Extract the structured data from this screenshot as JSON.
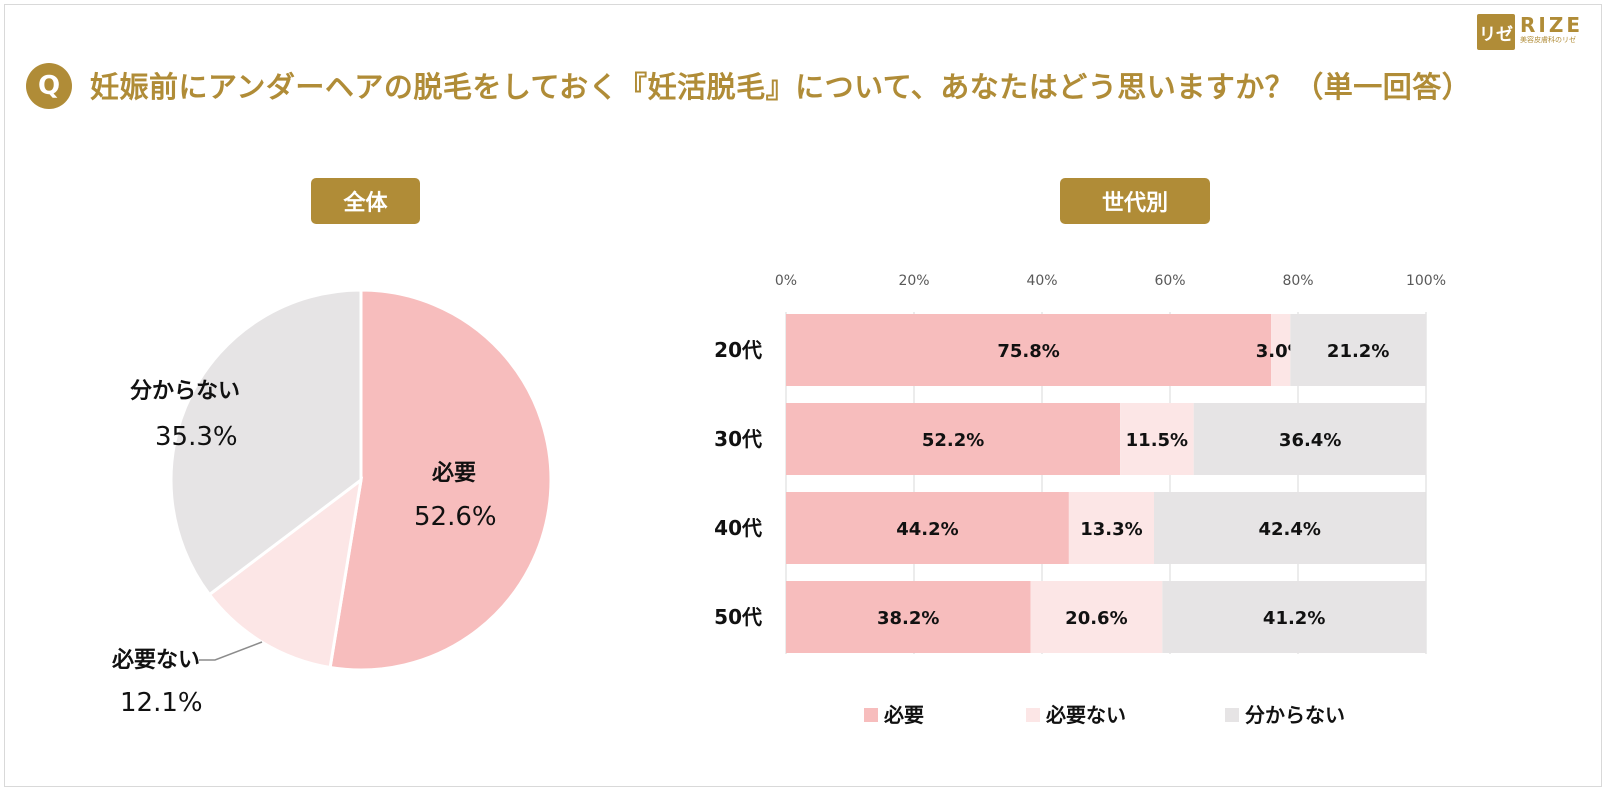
{
  "header": {
    "q_badge": "Q",
    "title": "妊娠前にアンダーヘアの脱毛をしておく『妊活脱毛』について、あなたはどう思いますか？（単一回答）"
  },
  "logo": {
    "mark": "リゼ",
    "word": "RIZE",
    "sub": "美容皮膚科のリゼ"
  },
  "colors": {
    "accent": "#b08c37",
    "needed": "#f7bdbd",
    "not_needed": "#fce6e6",
    "unknown": "#e6e4e5"
  },
  "chart_data": [
    {
      "type": "pie",
      "title": "全体",
      "slices": [
        {
          "label": "必要",
          "value": 52.6,
          "display": "52.6%"
        },
        {
          "label": "必要ない",
          "value": 12.1,
          "display": "12.1%"
        },
        {
          "label": "分からない",
          "value": 35.3,
          "display": "35.3%"
        }
      ]
    },
    {
      "type": "bar",
      "orientation": "horizontal",
      "stacked": true,
      "title": "世代別",
      "categories": [
        "20代",
        "30代",
        "40代",
        "50代"
      ],
      "series": [
        {
          "name": "必要",
          "values": [
            75.8,
            52.2,
            44.2,
            38.2
          ]
        },
        {
          "name": "必要ない",
          "values": [
            3.0,
            11.5,
            13.3,
            20.6
          ]
        },
        {
          "name": "分からない",
          "values": [
            21.2,
            36.4,
            42.4,
            41.2
          ]
        }
      ],
      "xlim": [
        0,
        100
      ],
      "xticks": [
        "0%",
        "20%",
        "40%",
        "60%",
        "80%",
        "100%"
      ],
      "legend": [
        "必要",
        "必要ない",
        "分からない"
      ],
      "legend_position": "bottom"
    }
  ]
}
